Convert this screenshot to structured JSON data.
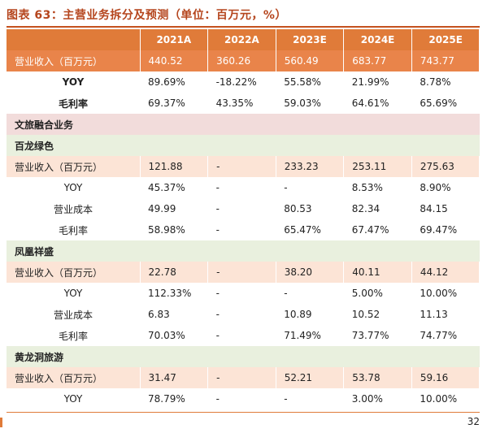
{
  "title": "图表 63：主营业务拆分及预测（单位：百万元，%）",
  "columns": [
    "2021A",
    "2022A",
    "2023E",
    "2024E",
    "2025E"
  ],
  "rows": [
    {
      "label": "营业收入（百万元）",
      "values": [
        "440.52",
        "360.26",
        "560.49",
        "683.77",
        "743.77"
      ]
    },
    {
      "label": "YOY",
      "values": [
        "89.69%",
        "-18.22%",
        "55.58%",
        "21.99%",
        "8.78%"
      ]
    },
    {
      "label": "毛利率",
      "values": [
        "69.37%",
        "43.35%",
        "59.03%",
        "64.61%",
        "65.69%"
      ]
    },
    {
      "label": "文旅融合业务"
    },
    {
      "label": "百龙绿色"
    },
    {
      "label": "营业收入（百万元）",
      "values": [
        "121.88",
        "-",
        "233.23",
        "253.11",
        "275.63"
      ]
    },
    {
      "label": "YOY",
      "values": [
        "45.37%",
        "-",
        "-",
        "8.53%",
        "8.90%"
      ]
    },
    {
      "label": "营业成本",
      "values": [
        "49.99",
        "-",
        "80.53",
        "82.34",
        "84.15"
      ]
    },
    {
      "label": "毛利率",
      "values": [
        "58.98%",
        "-",
        "65.47%",
        "67.47%",
        "69.47%"
      ]
    },
    {
      "label": "凤凰祥盛"
    },
    {
      "label": "营业收入（百万元）",
      "values": [
        "22.78",
        "-",
        "38.20",
        "40.11",
        "44.12"
      ]
    },
    {
      "label": "YOY",
      "values": [
        "112.33%",
        "-",
        "-",
        "5.00%",
        "10.00%"
      ]
    },
    {
      "label": "营业成本",
      "values": [
        "6.83",
        "-",
        "10.89",
        "10.52",
        "11.13"
      ]
    },
    {
      "label": "毛利率",
      "values": [
        "70.03%",
        "-",
        "71.49%",
        "73.77%",
        "74.77%"
      ]
    },
    {
      "label": "黄龙洞旅游"
    },
    {
      "label": "营业收入（百万元）",
      "values": [
        "31.47",
        "-",
        "52.21",
        "53.78",
        "59.16"
      ]
    },
    {
      "label": "YOY",
      "values": [
        "78.79%",
        "-",
        "-",
        "3.00%",
        "10.00%"
      ]
    }
  ],
  "page_number": "32"
}
